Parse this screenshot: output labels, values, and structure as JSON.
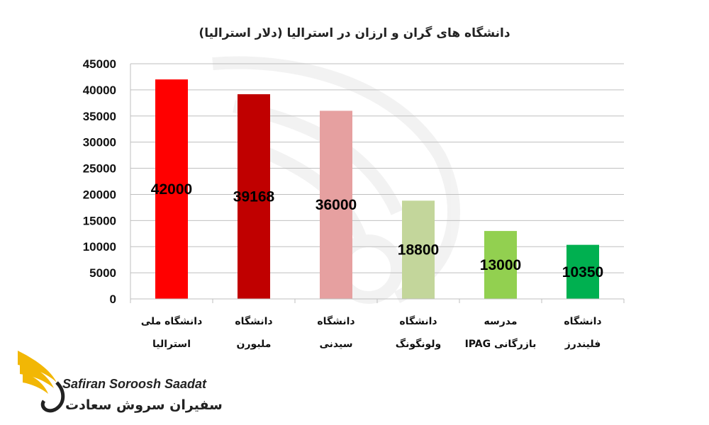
{
  "chart_data": {
    "type": "bar",
    "title": "دانشگاه های گران و ارزان در استرالیا (دلار استرالیا)",
    "categories": [
      [
        "دانشگاه ملی",
        "استرالیا"
      ],
      [
        "دانشگاه",
        "ملبورن"
      ],
      [
        "دانشگاه",
        "سیدنی"
      ],
      [
        "دانشگاه",
        "ولونگونگ"
      ],
      [
        "مدرسه",
        "بازرگانی IPAG"
      ],
      [
        "دانشگاه",
        "فلیندرز"
      ]
    ],
    "values": [
      42000,
      39168,
      36000,
      18800,
      13000,
      10350
    ],
    "data_labels": [
      "42000",
      "39168",
      "36000",
      "18800",
      "13000",
      "10350"
    ],
    "bar_colors": [
      "#ff0000",
      "#c00000",
      "#e6a0a0",
      "#c3d69b",
      "#92d050",
      "#00b050"
    ],
    "ylim": [
      0,
      45000
    ],
    "yticks": [
      "0",
      "5000",
      "10000",
      "15000",
      "20000",
      "25000",
      "30000",
      "35000",
      "40000",
      "45000"
    ],
    "grid": true,
    "legend": "none",
    "xlabel": "",
    "ylabel": ""
  },
  "logo": {
    "name_en": "Safiran Soroosh Saadat",
    "name_fa": "سفیران سروش سعادت",
    "accent_color": "#f2b705"
  }
}
